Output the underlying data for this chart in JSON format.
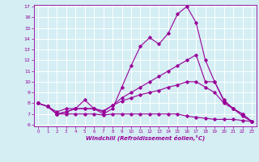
{
  "x": [
    0,
    1,
    2,
    3,
    4,
    5,
    6,
    7,
    8,
    9,
    10,
    11,
    12,
    13,
    14,
    15,
    16,
    17,
    18,
    19,
    20,
    21,
    22,
    23
  ],
  "line1": [
    8,
    7.7,
    7,
    7.2,
    7.5,
    8.3,
    7.5,
    7,
    7.5,
    9.5,
    11.5,
    13.3,
    14.1,
    13.5,
    14.5,
    16.3,
    17,
    15.5,
    12,
    10,
    8.3,
    7.5,
    7,
    6.3
  ],
  "line2": [
    8,
    7.7,
    7,
    7.2,
    7.5,
    7.5,
    7.5,
    7.2,
    7.8,
    8.5,
    9,
    9.5,
    10,
    10.5,
    11,
    11.5,
    12,
    12.5,
    10,
    10,
    8.2,
    7.5,
    6.8,
    6.3
  ],
  "line3": [
    8,
    7.7,
    7.2,
    7.5,
    7.5,
    7.5,
    7.5,
    7.3,
    7.8,
    8.2,
    8.5,
    8.8,
    9.0,
    9.2,
    9.5,
    9.7,
    10,
    10,
    9.5,
    9,
    8,
    7.5,
    7,
    6.3
  ],
  "line4": [
    8,
    7.7,
    7,
    7,
    7,
    7,
    7,
    6.9,
    7,
    7,
    7,
    7,
    7,
    7,
    7,
    7,
    6.8,
    6.7,
    6.6,
    6.5,
    6.5,
    6.5,
    6.4,
    6.3
  ],
  "color": "#990099",
  "bg_color": "#d4eef4",
  "grid_color": "#ffffff",
  "xlabel": "Windchill (Refroidissement éolien,°C)",
  "xlim": [
    0,
    23
  ],
  "ylim": [
    6,
    17
  ],
  "yticks": [
    6,
    7,
    8,
    9,
    10,
    11,
    12,
    13,
    14,
    15,
    16,
    17
  ],
  "xticks": [
    0,
    1,
    2,
    3,
    4,
    5,
    6,
    7,
    8,
    9,
    10,
    11,
    12,
    13,
    14,
    15,
    16,
    17,
    18,
    19,
    20,
    21,
    22,
    23
  ]
}
